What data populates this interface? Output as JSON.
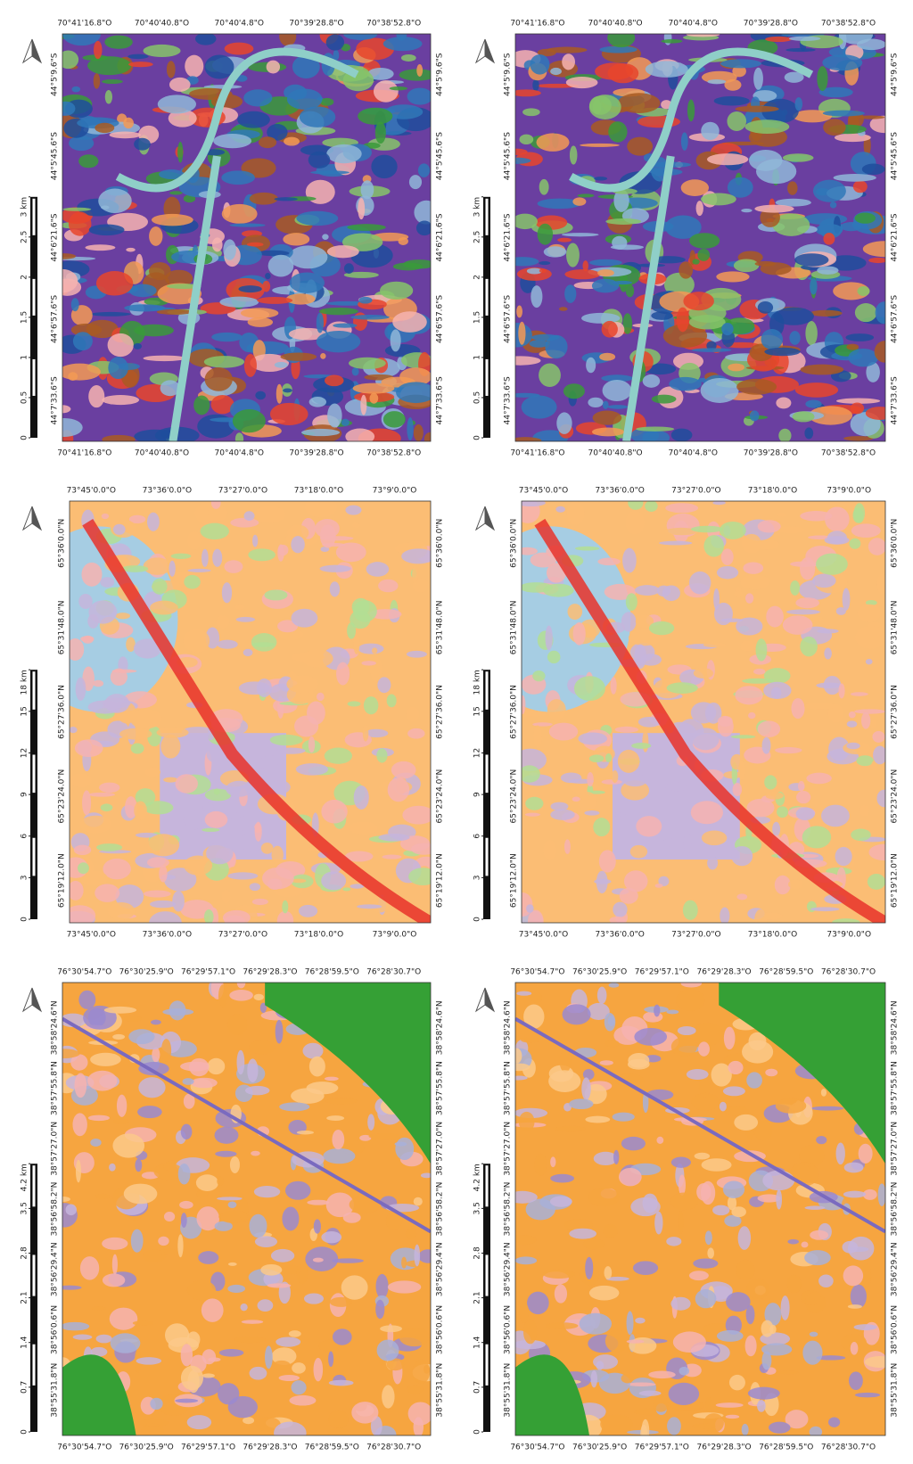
{
  "rows": [
    {
      "top": [
        "70°41'16.8\"O",
        "70°40'40.8\"O",
        "70°40'4.8\"O",
        "70°39'28.8\"O",
        "70°38'52.8\"O"
      ],
      "side": [
        "44°5'9.6\"S",
        "44°5'45.6\"S",
        "44°6'21.6\"S",
        "44°6'57.6\"S",
        "44°7'33.6\"S"
      ],
      "scale": [
        0,
        0.5,
        1,
        1.5,
        2,
        2.5,
        {
          "value": 3,
          "label": "3 km"
        }
      ]
    },
    {
      "top": [
        "73°45'0.0\"O",
        "73°36'0.0\"O",
        "73°27'0.0\"O",
        "73°18'0.0\"O",
        "73°9'0.0\"O"
      ],
      "side": [
        "65°36'0.0\"N",
        "65°31'48.0\"N",
        "65°27'36.0\"N",
        "65°23'24.0\"N",
        "65°19'12.0\"N"
      ],
      "scale": [
        0,
        3,
        6,
        9,
        12,
        15,
        {
          "value": 18,
          "label": "18 km"
        }
      ]
    },
    {
      "top": [
        "76°30'54.7\"O",
        "76°30'25.9\"O",
        "76°29'57.1\"O",
        "76°29'28.3\"O",
        "76°28'59.5\"O",
        "76°28'30.7\"O"
      ],
      "side": [
        "38°58'24.6\"N",
        "38°57'55.8\"N",
        "38°57'27.0\"N",
        "38°56'58.2\"N",
        "38°56'29.4\"N",
        "38°56'0.6\"N",
        "38°55'31.8\"N"
      ],
      "scale": [
        0,
        0.7,
        1.4,
        2.1,
        2.8,
        3.5,
        {
          "value": 4.2,
          "label": "4.2 km"
        }
      ]
    }
  ]
}
